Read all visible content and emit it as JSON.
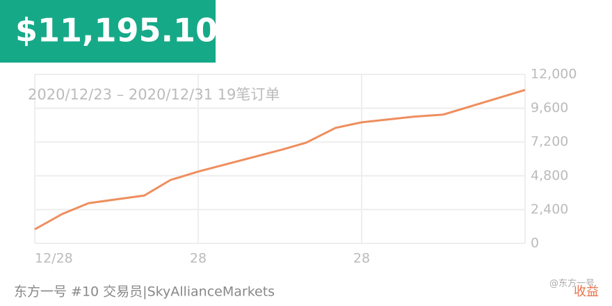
{
  "header": {
    "amount": "$11,195.10"
  },
  "chart_data": {
    "type": "line",
    "subtitle": "2020/12/23 – 2020/12/31 19笔订单",
    "x": [
      0,
      1.7,
      3.3,
      6.7,
      8.3,
      10,
      15.1,
      16.6,
      18.4,
      20,
      23.2,
      25,
      30
    ],
    "series": [
      {
        "color": "#ee8e5e",
        "values": [
          1000,
          2100,
          2860,
          3400,
          4500,
          5100,
          6650,
          7150,
          8200,
          8600,
          9000,
          9150,
          10900
        ]
      }
    ],
    "xlim": [
      0,
      30
    ],
    "xticks": [
      {
        "value": 0,
        "label": "12/28"
      },
      {
        "value": 10,
        "label": "28"
      },
      {
        "value": 20,
        "label": "28"
      }
    ],
    "ylim": [
      0,
      12000
    ],
    "yticks": [
      0,
      {
        "value": 2400,
        "label": "2,400"
      },
      {
        "value": 4800,
        "label": "4,800"
      },
      {
        "value": 7200,
        "label": "7,200"
      },
      {
        "value": 9600,
        "label": "9,600"
      },
      {
        "value": 12000,
        "label": "12,000"
      }
    ],
    "grid": true
  },
  "footer": {
    "trader": "东方一号 #10 交易员|SkyAllianceMarkets",
    "watermark": "@东方一号",
    "tag": "收益"
  }
}
